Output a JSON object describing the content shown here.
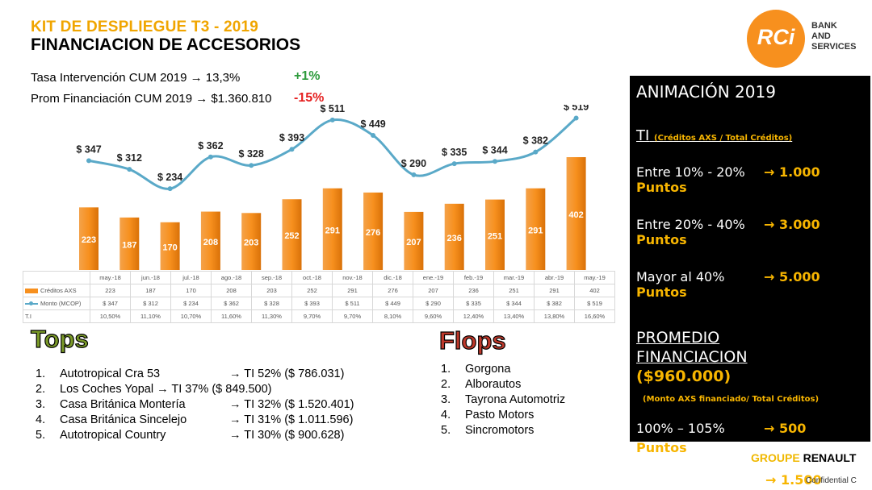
{
  "header": {
    "title1": "KIT DE DESPLIEGUE T3 - 2019",
    "title2": "FINANCIACION DE ACCESORIOS",
    "kpi1": "Tasa Intervención CUM 2019 → 13,3%",
    "kpi1_delta": "+1%",
    "kpi2": "Prom Financiación CUM 2019 → $1.360.810",
    "kpi2_delta": "-15%"
  },
  "logo": {
    "text": "RCi",
    "sub1": "BANK",
    "sub2": "AND",
    "sub3": "SERVICES",
    "color": "#f7901e"
  },
  "chart_data": {
    "type": "bar",
    "categories": [
      "may.-18",
      "jun.-18",
      "jul.-18",
      "ago.-18",
      "sep.-18",
      "oct.-18",
      "nov.-18",
      "dic.-18",
      "ene.-19",
      "feb.-19",
      "mar.-19",
      "abr.-19",
      "may.-19"
    ],
    "series": [
      {
        "name": "Créditos AXS",
        "type": "bar",
        "values": [
          223,
          187,
          170,
          208,
          203,
          252,
          291,
          276,
          207,
          236,
          251,
          291,
          402
        ],
        "color": "#f7901e"
      },
      {
        "name": "Monto (MCOP)",
        "type": "line",
        "values": [
          347,
          312,
          234,
          362,
          328,
          393,
          511,
          449,
          290,
          335,
          344,
          382,
          519
        ],
        "labels": [
          "$ 347",
          "$ 312",
          "$ 234",
          "$ 362",
          "$ 328",
          "$ 393",
          "$ 511",
          "$ 449",
          "$ 290",
          "$ 335",
          "$ 344",
          "$ 382",
          "$ 519"
        ],
        "color": "#5aa9c8"
      }
    ],
    "table": {
      "ti_label": "T.I",
      "ti": [
        "10,50%",
        "11,10%",
        "10,70%",
        "11,60%",
        "11,30%",
        "9,70%",
        "9,70%",
        "8,10%",
        "9,60%",
        "12,40%",
        "13,40%",
        "13,80%",
        "16,60%"
      ],
      "monto": [
        "$ 347",
        "$ 312",
        "$ 234",
        "$ 362",
        "$ 328",
        "$ 393",
        "$ 511",
        "$ 449",
        "$ 290",
        "$ 335",
        "$ 344",
        "$ 382",
        "$ 519"
      ]
    }
  },
  "tops": {
    "title": "Tops",
    "items": [
      {
        "n": "1.",
        "name": "Autotropical Cra 53",
        "ti": "→ TI 52% ($ 786.031)"
      },
      {
        "n": "2.",
        "name": "Los Coches Yopal → TI 37% ($ 849.500)",
        "ti": ""
      },
      {
        "n": "3.",
        "name": "Casa Británica Montería",
        "ti": "→ TI 32% ($ 1.520.401)"
      },
      {
        "n": "4.",
        "name": "Casa Británica Sincelejo",
        "ti": "→ TI 31% ($ 1.011.596)"
      },
      {
        "n": "5.",
        "name": "Autotropical Country",
        "ti": "→ TI 30% ($ 900.628)"
      }
    ]
  },
  "flops": {
    "title": "Flops",
    "items": [
      {
        "n": "1.",
        "name": "Gorgona"
      },
      {
        "n": "2.",
        "name": "Alborautos"
      },
      {
        "n": "3.",
        "name": "Tayrona Automotriz"
      },
      {
        "n": "4.",
        "name": "Pasto Motors"
      },
      {
        "n": "5.",
        "name": "Sincromotors"
      }
    ]
  },
  "panel": {
    "title": "ANIMACIÓN 2019",
    "ti": "TI",
    "ti_note": "(Créditos AXS / Total Créditos)",
    "r1": "Entre 10% - 20%",
    "r1v": "→ 1.000",
    "r1p": "Puntos",
    "r2": "Entre 20% - 40%",
    "r2v": "→ 3.000",
    "r2p": "Puntos",
    "r3": "Mayor al 40%",
    "r3v": "→ 5.000",
    "r3p": "Puntos",
    "prom1": "PROMEDIO",
    "prom2": "FINANCIACION",
    "prom3": "($960.000)",
    "prom_note": "(Monto AXS financiado/ Total Créditos)",
    "r4": "100% – 105%",
    "r4v": "→ 500",
    "r4p": "Puntos",
    "r5v": "→ 1.500"
  },
  "footer": {
    "groupe1": "GROUPE",
    "groupe2": "RENAULT",
    "confidential": "Confidential C"
  }
}
